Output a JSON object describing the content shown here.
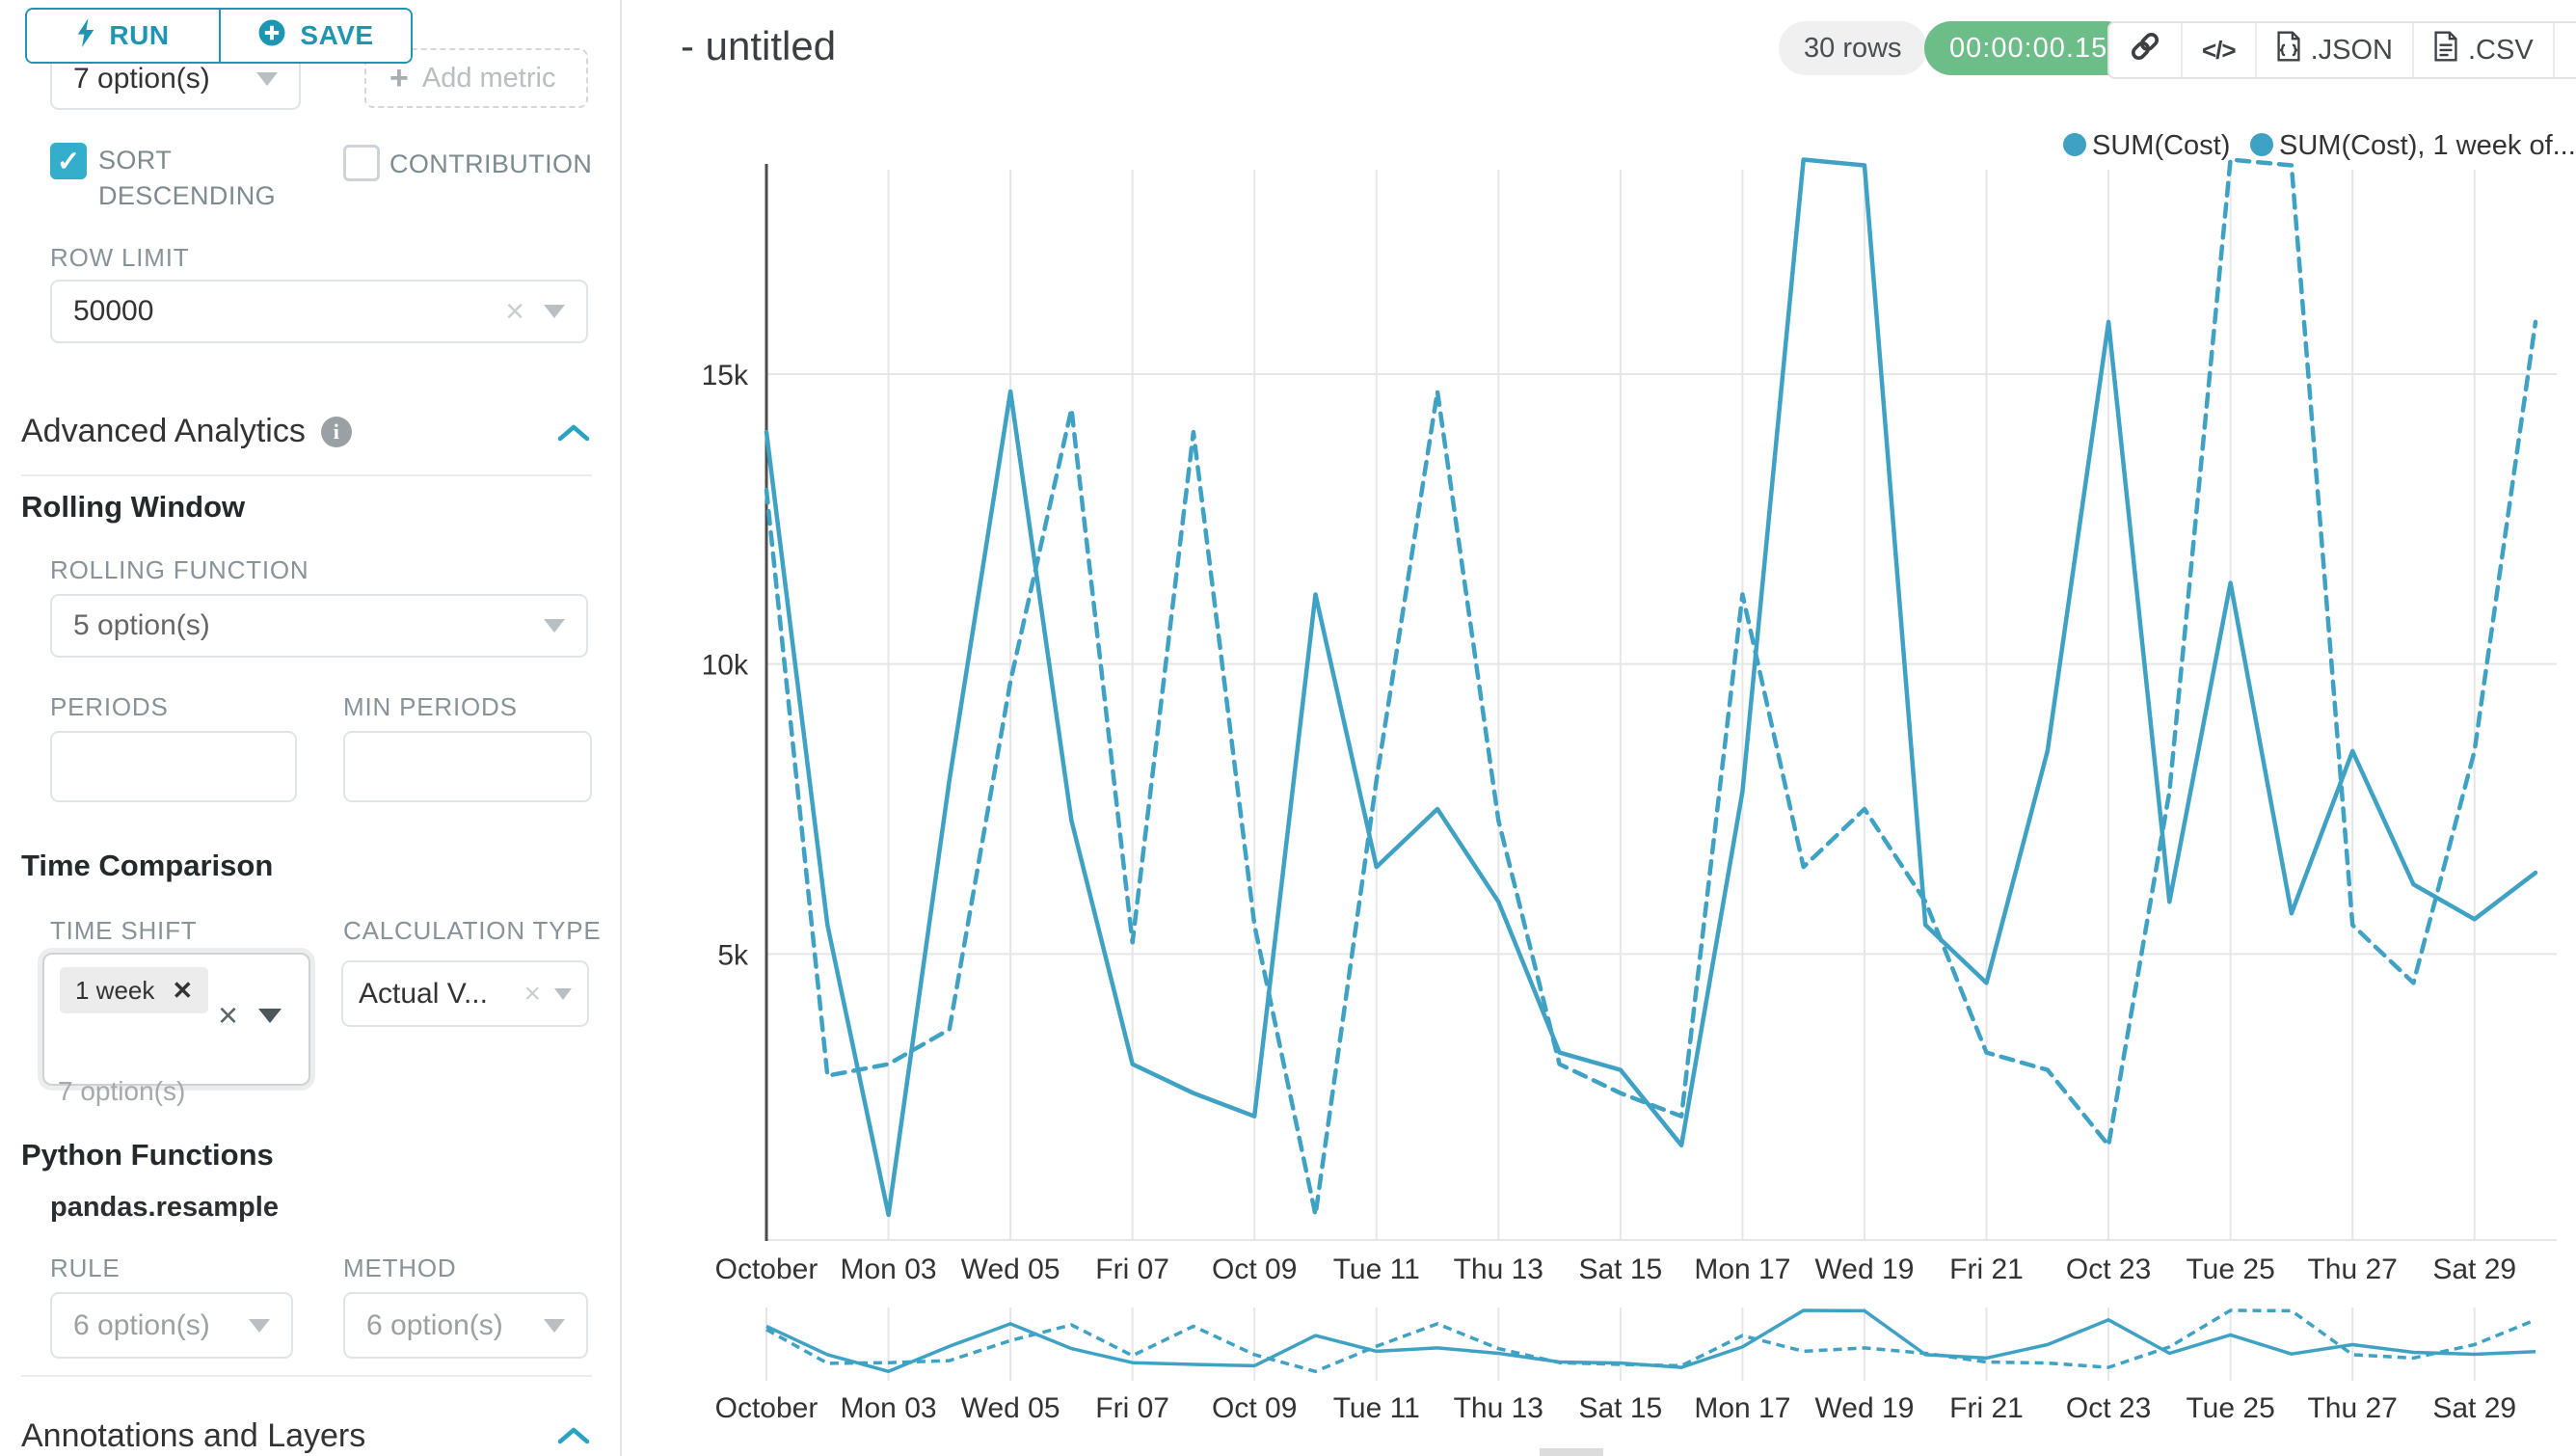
{
  "panel": {
    "run_label": "RUN",
    "save_label": "SAVE",
    "metrics_select_value": "7 option(s)",
    "add_metric_label": "Add metric",
    "sort_descending_label": "SORT DESCENDING",
    "contribution_label": "CONTRIBUTION",
    "row_limit_label": "ROW LIMIT",
    "row_limit_value": "50000",
    "advanced_analytics_title": "Advanced Analytics",
    "rolling_window_title": "Rolling Window",
    "rolling_function_label": "ROLLING FUNCTION",
    "rolling_function_value": "5 option(s)",
    "periods_label": "PERIODS",
    "min_periods_label": "MIN PERIODS",
    "time_comparison_title": "Time Comparison",
    "time_shift_label": "TIME SHIFT",
    "time_shift_tag": "1 week",
    "time_shift_helper": "7 option(s)",
    "calculation_type_label": "CALCULATION TYPE",
    "calculation_type_value": "Actual V...",
    "python_functions_title": "Python Functions",
    "pandas_resample_label": "pandas.resample",
    "rule_label": "RULE",
    "rule_value": "6 option(s)",
    "method_label": "METHOD",
    "method_value": "6 option(s)",
    "annotations_title": "Annotations and Layers"
  },
  "header": {
    "title": "- untitled",
    "rows_badge": "30 rows",
    "timer_badge": "00:00:00.15",
    "export_json_label": ".JSON",
    "export_csv_label": ".CSV"
  },
  "colors": {
    "accent": "#1e96b3",
    "line": "#3fa2c4",
    "checkbox": "#35aecb",
    "timer_green": "#6cbd88",
    "grid": "#e6e6e6",
    "axis": "#4c4c4c",
    "label": "#333333"
  },
  "chart_data": {
    "type": "line",
    "title": "",
    "xlabel": "",
    "ylabel": "",
    "grid": true,
    "legend_position": "top-right",
    "legend": [
      "SUM(Cost)",
      "SUM(Cost), 1 week of..."
    ],
    "x": [
      "Oct 01",
      "Oct 02",
      "Oct 03",
      "Oct 04",
      "Oct 05",
      "Oct 06",
      "Oct 07",
      "Oct 08",
      "Oct 09",
      "Oct 10",
      "Oct 11",
      "Oct 12",
      "Oct 13",
      "Oct 14",
      "Oct 15",
      "Oct 16",
      "Oct 17",
      "Oct 18",
      "Oct 19",
      "Oct 20",
      "Oct 21",
      "Oct 22",
      "Oct 23",
      "Oct 24",
      "Oct 25",
      "Oct 26",
      "Oct 27",
      "Oct 28",
      "Oct 29",
      "Oct 30"
    ],
    "x_tick_labels": [
      "October",
      "Mon 03",
      "Wed 05",
      "Fri 07",
      "Oct 09",
      "Tue 11",
      "Thu 13",
      "Sat 15",
      "Mon 17",
      "Wed 19",
      "Fri 21",
      "Oct 23",
      "Tue 25",
      "Thu 27",
      "Sat 29"
    ],
    "y_ticks": [
      {
        "label": "5k",
        "value": 5000
      },
      {
        "label": "10k",
        "value": 10000
      },
      {
        "label": "15k",
        "value": 15000
      }
    ],
    "ylim": [
      0,
      18700
    ],
    "series": [
      {
        "name": "SUM(Cost)",
        "style": "solid",
        "values": [
          14000,
          5500,
          500,
          8000,
          14700,
          7300,
          3100,
          2600,
          2200,
          11200,
          6500,
          7500,
          5900,
          3300,
          3000,
          1700,
          7800,
          18700,
          18600,
          5500,
          4500,
          8500,
          15900,
          5900,
          11400,
          5700,
          8500,
          6200,
          5600,
          6400
        ]
      },
      {
        "name": "SUM(Cost), 1 week offset",
        "style": "dashed",
        "values": [
          13000,
          2900,
          3100,
          3700,
          9700,
          14400,
          5200,
          14000,
          5500,
          500,
          8000,
          14700,
          7300,
          3100,
          2600,
          2200,
          11200,
          6500,
          7500,
          5900,
          3300,
          3000,
          1700,
          7800,
          18700,
          18600,
          5500,
          4500,
          8500,
          15900
        ]
      }
    ]
  }
}
